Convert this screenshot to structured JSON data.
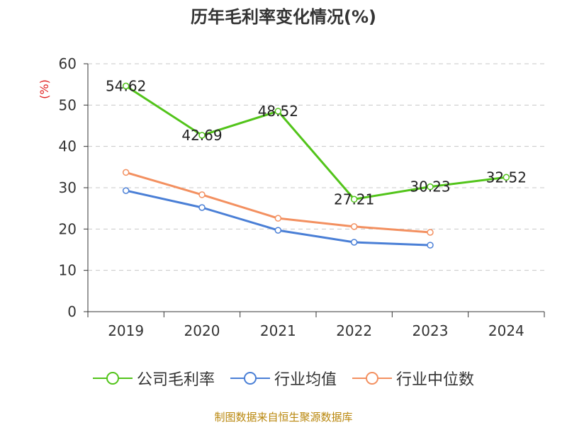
{
  "chart_data": {
    "type": "line",
    "title": "历年毛利率变化情况(%)",
    "ylabel": "(%)",
    "xlabel": "",
    "categories": [
      "2019",
      "2020",
      "2021",
      "2022",
      "2023",
      "2024"
    ],
    "ylim": [
      0,
      60
    ],
    "yticks": [
      0,
      10,
      20,
      30,
      40,
      50,
      60
    ],
    "grid": true,
    "legend_position": "bottom",
    "series": [
      {
        "name": "公司毛利率",
        "color": "#52c41a",
        "labeled": true,
        "values": [
          54.62,
          42.69,
          48.52,
          27.21,
          30.23,
          32.52
        ],
        "labels": [
          "54.62",
          "42.69",
          "48.52",
          "27.21",
          "30.23",
          "32.52"
        ]
      },
      {
        "name": "行业均值",
        "color": "#4a7fd6",
        "labeled": false,
        "values": [
          29.3,
          25.2,
          19.7,
          16.8,
          16.1,
          null
        ]
      },
      {
        "name": "行业中位数",
        "color": "#f39060",
        "labeled": false,
        "values": [
          33.7,
          28.3,
          22.6,
          20.6,
          19.2,
          null
        ]
      }
    ]
  },
  "source": "制图数据来自恒生聚源数据库"
}
